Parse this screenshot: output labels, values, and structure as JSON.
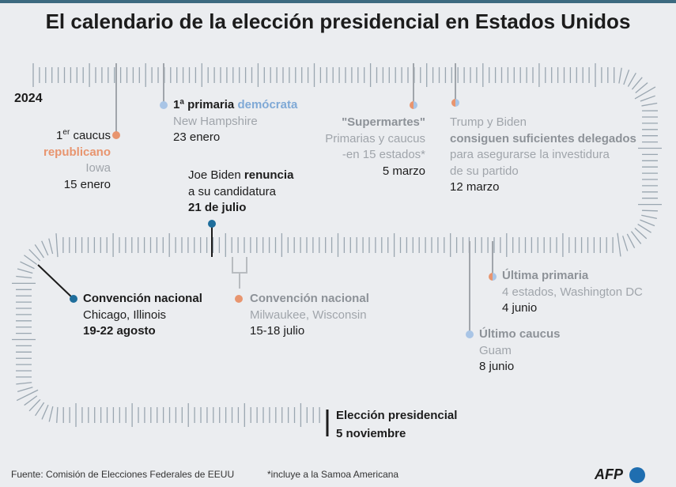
{
  "title": "El calendario de la elección presidencial en Estados Unidos",
  "year": "2024",
  "events": [
    {
      "lines": [
        [
          "1",
          "er",
          "caucus"
        ],
        [
          "republicano"
        ],
        [
          "Iowa"
        ],
        [
          "15 enero"
        ]
      ]
    },
    {
      "lines": [
        [
          "1ª",
          "primaria",
          "demócrata"
        ],
        [
          "New Hampshire"
        ],
        [
          "23 enero"
        ]
      ]
    },
    {
      "lines": [
        [
          "\"Supermartes\""
        ],
        [
          "Primarias y caucus"
        ],
        [
          "-en 15 estados*"
        ],
        [
          "5 marzo"
        ]
      ]
    },
    {
      "lines": [
        [
          "Trump y Biden"
        ],
        [
          "consiguen suficientes delegados"
        ],
        [
          "para asegurarse la investidura"
        ],
        [
          "de su partido"
        ],
        [
          "12 marzo"
        ]
      ]
    },
    {
      "lines": [
        [
          "Joe Biden",
          "renuncia"
        ],
        [
          "a su candidatura"
        ],
        [
          "21 de julio"
        ]
      ]
    },
    {
      "lines": [
        [
          "Convención nacional"
        ],
        [
          "Milwaukee, Wisconsin"
        ],
        [
          "15-18 julio"
        ]
      ]
    },
    {
      "lines": [
        [
          "Convención nacional"
        ],
        [
          "Chicago, Illinois"
        ],
        [
          "19-22 agosto"
        ]
      ]
    },
    {
      "lines": [
        [
          "Última primaria"
        ],
        [
          "4 estados, Washington DC"
        ],
        [
          "4 junio"
        ]
      ]
    },
    {
      "lines": [
        [
          "Último caucus"
        ],
        [
          "Guam"
        ],
        [
          "8 junio"
        ]
      ]
    },
    {
      "lines": [
        [
          "Elección presidencial"
        ],
        [
          "5 noviembre"
        ]
      ]
    }
  ],
  "footer": {
    "source": "Fuente: Comisión de Elecciones Federales de EEUU",
    "note": "*incluye a la Samoa Americana",
    "logo": "AFP"
  }
}
